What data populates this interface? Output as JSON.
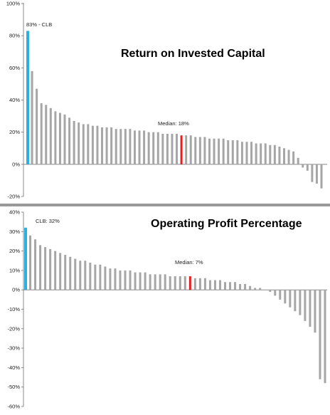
{
  "colors": {
    "bar": "#a6a6a6",
    "highlight": "#2bb0e0",
    "median": "#e02020",
    "axis": "#888888",
    "separator": "#9a9a9a"
  },
  "chart_data": [
    {
      "type": "bar",
      "title": "Return on Invested Capital",
      "xlabel": "",
      "ylabel": "",
      "ylim": [
        -20,
        100
      ],
      "ytick_values": [
        -20,
        0,
        20,
        40,
        60,
        80,
        100
      ],
      "ytick_labels": [
        "-20%",
        "0%",
        "20%",
        "40%",
        "60%",
        "80%",
        "100%"
      ],
      "grid": false,
      "legend": "none",
      "annotations": [
        "83% - CLB",
        "Median: 18%"
      ],
      "highlight_index": 0,
      "median_index": 33,
      "values": [
        83,
        58,
        47,
        38,
        37,
        35,
        33,
        32,
        31,
        29,
        27,
        26,
        25,
        25,
        24,
        24,
        23,
        23,
        23,
        22,
        22,
        22,
        22,
        21,
        21,
        21,
        20,
        20,
        20,
        19,
        19,
        19,
        19,
        18,
        18,
        18,
        17,
        17,
        17,
        16,
        16,
        16,
        16,
        15,
        15,
        15,
        14,
        14,
        14,
        13,
        13,
        13,
        12,
        12,
        11,
        10,
        9,
        8,
        4,
        -2,
        -4,
        -11,
        -12,
        -15
      ]
    },
    {
      "type": "bar",
      "title": "Operating Profit Percentage",
      "xlabel": "",
      "ylabel": "",
      "ylim": [
        -60,
        40
      ],
      "ytick_values": [
        -60,
        -50,
        -40,
        -30,
        -20,
        -10,
        0,
        10,
        20,
        30,
        40
      ],
      "ytick_labels": [
        "-60%",
        "-50%",
        "-40%",
        "-30%",
        "-20%",
        "-10%",
        "0%",
        "10%",
        "20%",
        "30%",
        "40%"
      ],
      "grid": false,
      "legend": "none",
      "annotations": [
        "CLB: 32%",
        "Median: 7%"
      ],
      "highlight_index": 0,
      "median_index": 33,
      "values": [
        32,
        28,
        26,
        23,
        22,
        21,
        20,
        19,
        18,
        17,
        16,
        15,
        15,
        14,
        13,
        13,
        12,
        11,
        11,
        10,
        10,
        10,
        9,
        9,
        9,
        8,
        8,
        8,
        8,
        7,
        7,
        7,
        7,
        7,
        6,
        6,
        6,
        5,
        5,
        5,
        4,
        4,
        4,
        3,
        3,
        2,
        1,
        1,
        0,
        -1,
        -3,
        -5,
        -7,
        -9,
        -11,
        -13,
        -16,
        -19,
        -22,
        -46,
        -48
      ]
    }
  ]
}
